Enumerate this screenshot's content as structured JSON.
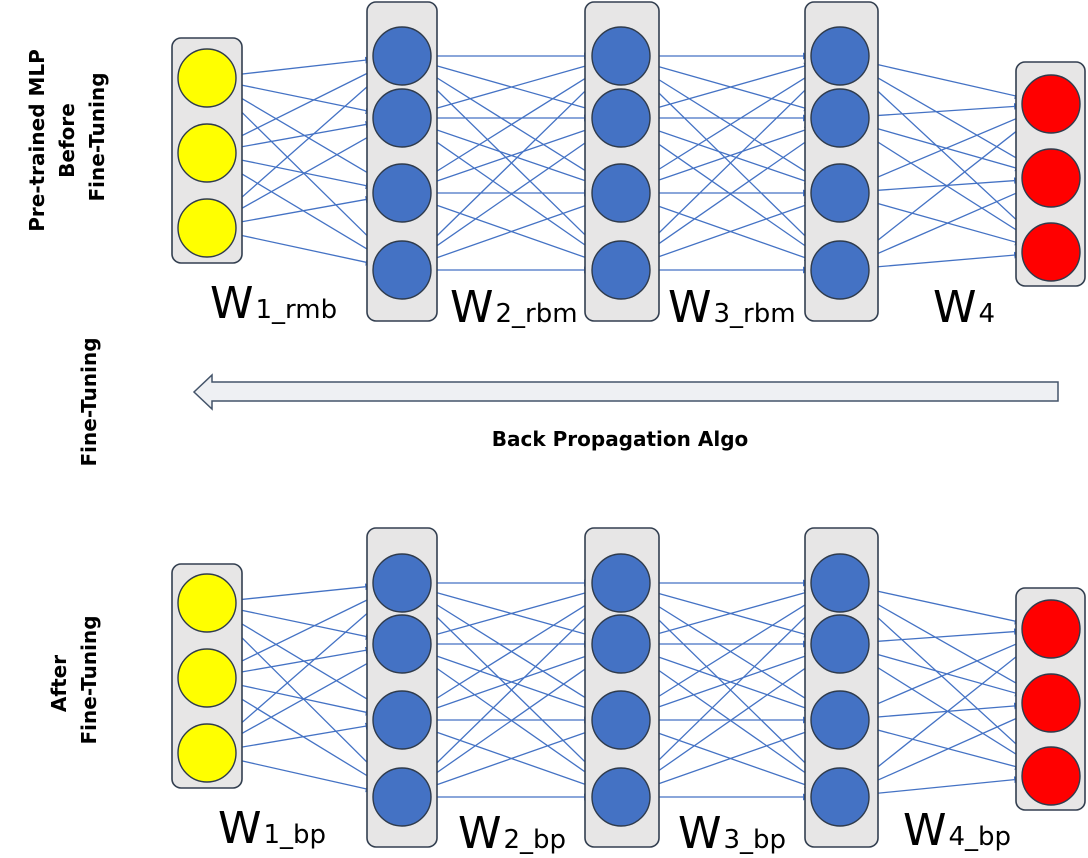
{
  "colors": {
    "input_node": "#ffff00",
    "hidden_node": "#4472c4",
    "output_node": "#ff0000",
    "connection": "#4472c4",
    "layer_box_fill": "#e7e6e6",
    "layer_box_stroke": "#333f50",
    "arrow_fill": "#eef0f3",
    "arrow_stroke": "#44546a"
  },
  "networks": [
    {
      "id": "before",
      "label_lines": [
        "Pre-trained MLP",
        "Before",
        "Fine-Tuning"
      ],
      "layers": [
        {
          "role": "input",
          "nodes": 3
        },
        {
          "role": "hidden",
          "nodes": 4
        },
        {
          "role": "hidden",
          "nodes": 4
        },
        {
          "role": "hidden",
          "nodes": 4
        },
        {
          "role": "output",
          "nodes": 3
        }
      ],
      "weights": [
        {
          "main": "W",
          "sub": "1_rmb"
        },
        {
          "main": "W",
          "sub": "2_rbm"
        },
        {
          "main": "W",
          "sub": "3_rbm"
        },
        {
          "main": "W",
          "sub": "4"
        }
      ]
    },
    {
      "id": "after",
      "label_lines": [
        "After",
        "Fine-Tuning"
      ],
      "layers": [
        {
          "role": "input",
          "nodes": 3
        },
        {
          "role": "hidden",
          "nodes": 4
        },
        {
          "role": "hidden",
          "nodes": 4
        },
        {
          "role": "hidden",
          "nodes": 4
        },
        {
          "role": "output",
          "nodes": 3
        }
      ],
      "weights": [
        {
          "main": "W",
          "sub": "1_bp"
        },
        {
          "main": "W",
          "sub": "2_bp"
        },
        {
          "main": "W",
          "sub": "3_bp"
        },
        {
          "main": "W",
          "sub": "4_bp"
        }
      ]
    }
  ],
  "fine_tuning": {
    "side_label": "Fine-Tuning",
    "arrow_label": "Back Propagation Algo"
  }
}
